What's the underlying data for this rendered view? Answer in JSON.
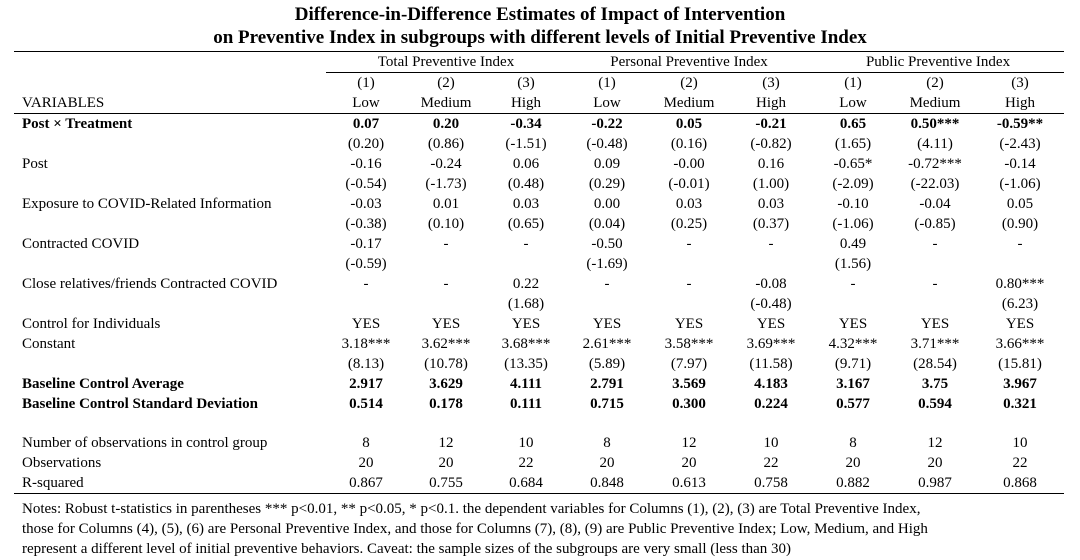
{
  "title": {
    "line1": "Difference-in-Difference Estimates of Impact of Intervention",
    "line2": "on Preventive Index in subgroups with different levels of Initial Preventive Index"
  },
  "groups": [
    "Total Preventive Index",
    "Personal Preventive Index",
    "Public Preventive Index"
  ],
  "col_numbers": [
    "(1)",
    "(2)",
    "(3)",
    "(1)",
    "(2)",
    "(3)",
    "(1)",
    "(2)",
    "(3)"
  ],
  "variables_label": "VARIABLES",
  "col_levels": [
    "Low",
    "Medium",
    "High",
    "Low",
    "Medium",
    "High",
    "Low",
    "Medium",
    "High"
  ],
  "rows": [
    {
      "label": "Post × Treatment",
      "bold": true,
      "cells": [
        "0.07",
        "0.20",
        "-0.34",
        "-0.22",
        "0.05",
        "-0.21",
        "0.65",
        "0.50***",
        "-0.59**"
      ]
    },
    {
      "label": "",
      "cells": [
        "(0.20)",
        "(0.86)",
        "(-1.51)",
        "(-0.48)",
        "(0.16)",
        "(-0.82)",
        "(1.65)",
        "(4.11)",
        "(-2.43)"
      ]
    },
    {
      "label": "Post",
      "cells": [
        "-0.16",
        "-0.24",
        "0.06",
        "0.09",
        "-0.00",
        "0.16",
        "-0.65*",
        "-0.72***",
        "-0.14"
      ]
    },
    {
      "label": "",
      "cells": [
        "(-0.54)",
        "(-1.73)",
        "(0.48)",
        "(0.29)",
        "(-0.01)",
        "(1.00)",
        "(-2.09)",
        "(-22.03)",
        "(-1.06)"
      ]
    },
    {
      "label": "Exposure to COVID-Related Information",
      "cells": [
        "-0.03",
        "0.01",
        "0.03",
        "0.00",
        "0.03",
        "0.03",
        "-0.10",
        "-0.04",
        "0.05"
      ]
    },
    {
      "label": "",
      "cells": [
        "(-0.38)",
        "(0.10)",
        "(0.65)",
        "(0.04)",
        "(0.25)",
        "(0.37)",
        "(-1.06)",
        "(-0.85)",
        "(0.90)"
      ]
    },
    {
      "label": "Contracted COVID",
      "cells": [
        "-0.17",
        "-",
        "-",
        "-0.50",
        "-",
        "-",
        "0.49",
        "-",
        "-"
      ]
    },
    {
      "label": "",
      "cells": [
        "(-0.59)",
        "",
        "",
        "(-1.69)",
        "",
        "",
        "(1.56)",
        "",
        ""
      ]
    },
    {
      "label": "Close relatives/friends Contracted COVID",
      "cells": [
        "-",
        "-",
        "0.22",
        "-",
        "-",
        "-0.08",
        "-",
        "-",
        "0.80***"
      ]
    },
    {
      "label": "",
      "cells": [
        "",
        "",
        "(1.68)",
        "",
        "",
        "(-0.48)",
        "",
        "",
        "(6.23)"
      ]
    },
    {
      "label": "Control for Individuals",
      "cells": [
        "YES",
        "YES",
        "YES",
        "YES",
        "YES",
        "YES",
        "YES",
        "YES",
        "YES"
      ]
    },
    {
      "label": "Constant",
      "cells": [
        "3.18***",
        "3.62***",
        "3.68***",
        "2.61***",
        "3.58***",
        "3.69***",
        "4.32***",
        "3.71***",
        "3.66***"
      ]
    },
    {
      "label": "",
      "cells": [
        "(8.13)",
        "(10.78)",
        "(13.35)",
        "(5.89)",
        "(7.97)",
        "(11.58)",
        "(9.71)",
        "(28.54)",
        "(15.81)"
      ]
    },
    {
      "label": "Baseline Control Average",
      "bold": true,
      "cells": [
        "2.917",
        "3.629",
        "4.111",
        "2.791",
        "3.569",
        "4.183",
        "3.167",
        "3.75",
        "3.967"
      ]
    },
    {
      "label": "Baseline Control Standard Deviation",
      "bold": true,
      "cells": [
        "0.514",
        "0.178",
        "0.111",
        "0.715",
        "0.300",
        "0.224",
        "0.577",
        "0.594",
        "0.321"
      ]
    }
  ],
  "stats": [
    {
      "label": "Number of observations in control group",
      "cells": [
        "8",
        "12",
        "10",
        "8",
        "12",
        "10",
        "8",
        "12",
        "10"
      ]
    },
    {
      "label": "Observations",
      "cells": [
        "20",
        "20",
        "22",
        "20",
        "20",
        "22",
        "20",
        "20",
        "22"
      ]
    },
    {
      "label": "R-squared",
      "cells": [
        "0.867",
        "0.755",
        "0.684",
        "0.848",
        "0.613",
        "0.758",
        "0.882",
        "0.987",
        "0.868"
      ]
    }
  ],
  "notes": [
    "Notes: Robust t-statistics in parentheses *** p<0.01, ** p<0.05, * p<0.1. the dependent variables for Columns (1), (2), (3) are Total Preventive Index,",
    "those for Columns (4), (5), (6) are Personal Preventive Index, and those for Columns (7), (8), (9) are Public Preventive Index; Low, Medium, and High",
    "represent a different level of initial preventive behaviors. Caveat: the sample sizes of the subgroups are very small (less than 30)"
  ]
}
